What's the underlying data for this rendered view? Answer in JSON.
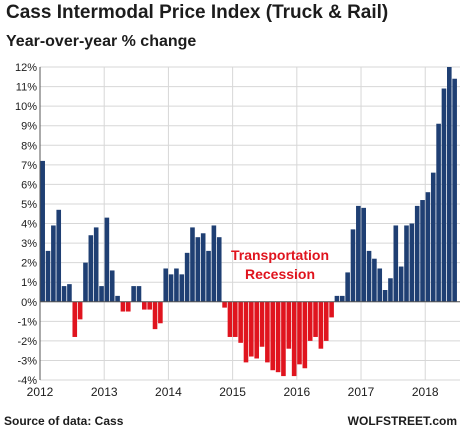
{
  "header": {
    "title": "Cass Intermodal Price Index (Truck & Rail)",
    "subtitle": "Year-over-year % change"
  },
  "footer": {
    "source": "Source of data: Cass",
    "brand": "WOLFSTREET.com"
  },
  "colors": {
    "positive": "#1f3f73",
    "negative": "#e0141e",
    "grid": "#d7d7d7",
    "annotation": "#e0141e",
    "text": "#1c1c1c"
  },
  "chart_data": {
    "type": "bar",
    "title": "Cass Intermodal Price Index (Truck & Rail)",
    "subtitle": "Year-over-year % change",
    "xlabel": "",
    "ylabel": "",
    "ylim": [
      -4,
      12
    ],
    "y_ticks": [
      -4,
      -3,
      -2,
      -1,
      0,
      1,
      2,
      3,
      4,
      5,
      6,
      7,
      8,
      9,
      10,
      11,
      12
    ],
    "y_tick_labels": [
      "-4%",
      "-3%",
      "-2%",
      "-1%",
      "0%",
      "1%",
      "2%",
      "3%",
      "4%",
      "5%",
      "6%",
      "7%",
      "8%",
      "9%",
      "10%",
      "11%",
      "12%"
    ],
    "x_tick_labels": [
      "2012",
      "2013",
      "2014",
      "2015",
      "2016",
      "2017",
      "2018"
    ],
    "grid": true,
    "legend": "none",
    "annotation": {
      "lines": [
        "Transportation",
        "Recession"
      ]
    },
    "series": [
      {
        "start": "2012-01",
        "frequency": "monthly",
        "values": [
          7.2,
          2.6,
          3.9,
          4.7,
          0.8,
          0.9,
          -1.8,
          -0.9,
          2.0,
          3.4,
          3.8,
          0.8,
          4.3,
          1.6,
          0.3,
          -0.5,
          -0.5,
          0.8,
          0.8,
          -0.4,
          -0.4,
          -1.4,
          -1.1,
          1.7,
          1.4,
          1.7,
          1.4,
          2.5,
          3.8,
          3.3,
          3.5,
          2.6,
          3.9,
          3.3,
          -0.3,
          -1.8,
          -1.8,
          -2.1,
          -3.1,
          -2.8,
          -2.9,
          -2.3,
          -3.1,
          -3.5,
          -3.6,
          -3.8,
          -2.4,
          -3.8,
          -3.2,
          -3.4,
          -2.0,
          -1.8,
          -2.4,
          -2.0,
          -0.8,
          0.3,
          0.3,
          1.5,
          3.7,
          4.9,
          4.8,
          2.6,
          2.2,
          1.7,
          0.6,
          1.2,
          3.9,
          1.8,
          3.9,
          4.0,
          4.9,
          5.2,
          5.6,
          6.6,
          9.1,
          10.9,
          12.0,
          11.4
        ]
      }
    ]
  }
}
